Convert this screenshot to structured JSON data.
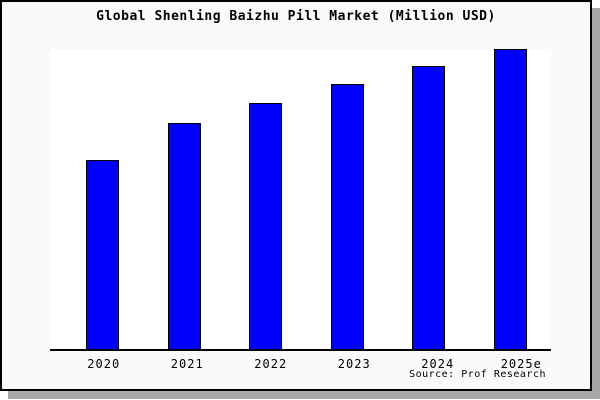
{
  "figure": {
    "title": "Global Shenling Baizhu Pill Market (Million USD)",
    "source": "Source: Prof Research"
  },
  "chart_data": {
    "type": "bar",
    "title": "Global Shenling Baizhu Pill Market (Million USD)",
    "categories": [
      "2020",
      "2021",
      "2022",
      "2023",
      "2024",
      "2025e"
    ],
    "values": [
      63,
      75.3,
      82,
      88.3,
      94.3,
      100
    ],
    "note": "No y-axis ticks or data labels are shown in the chart; values are relative bar heights estimated from pixels with 2025e normalized to 100.",
    "xlabel": "",
    "ylabel": "",
    "ylim": [
      0,
      100.3
    ],
    "grid": false,
    "legend": null,
    "bar_color": "#0000ff",
    "bar_edge_color": "#000000",
    "source": "Source: Prof Research"
  },
  "colors": {
    "figure_background": "#fafafa",
    "plot_background": "#ffffff",
    "axis_line": "#000000",
    "frame_border": "#000000",
    "shadow": "#a6a6a6",
    "text": "#000000"
  }
}
